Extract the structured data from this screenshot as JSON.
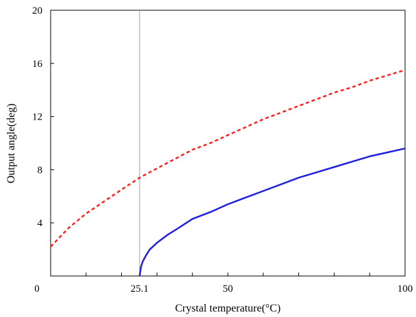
{
  "chart_data": {
    "type": "line",
    "title": "",
    "xlabel": "Crystal temperature(°C)",
    "ylabel": "Output angle(deg)",
    "xlim": [
      0,
      100
    ],
    "ylim": [
      0,
      20
    ],
    "x_tick_labels": [
      {
        "value": 0,
        "label": "0"
      },
      {
        "value": 25.1,
        "label": "25.1"
      },
      {
        "value": 50,
        "label": "50"
      },
      {
        "value": 100,
        "label": "100"
      }
    ],
    "x_minor_ticks": [
      10,
      20,
      30,
      40,
      60,
      70,
      80,
      90
    ],
    "y_tick_labels": [
      {
        "value": 4,
        "label": "4"
      },
      {
        "value": 8,
        "label": "8"
      },
      {
        "value": 12,
        "label": "12"
      },
      {
        "value": 16,
        "label": "16"
      },
      {
        "value": 20,
        "label": "20"
      }
    ],
    "reference_line": {
      "x": 25.1,
      "color": "#a0a0a0"
    },
    "grid": false,
    "legend": "none",
    "series": [
      {
        "style": "dashed",
        "color": "#ff2020",
        "x": [
          0,
          5,
          10,
          15,
          20,
          25.1,
          30,
          35,
          40,
          45,
          50,
          55,
          60,
          65,
          70,
          75,
          80,
          85,
          90,
          95,
          100
        ],
        "y": [
          2.2,
          3.6,
          4.7,
          5.6,
          6.5,
          7.4,
          8.1,
          8.8,
          9.5,
          10.0,
          10.6,
          11.2,
          11.8,
          12.3,
          12.8,
          13.3,
          13.8,
          14.2,
          14.7,
          15.1,
          15.5
        ]
      },
      {
        "style": "solid",
        "color": "#2020e0",
        "x": [
          25.1,
          25.5,
          26,
          27,
          28,
          30,
          33,
          36,
          40,
          45,
          50,
          55,
          60,
          65,
          70,
          75,
          80,
          85,
          90,
          95,
          100
        ],
        "y": [
          0,
          0.7,
          1.1,
          1.6,
          2.0,
          2.5,
          3.1,
          3.6,
          4.3,
          4.8,
          5.4,
          5.9,
          6.4,
          6.9,
          7.4,
          7.8,
          8.2,
          8.6,
          9.0,
          9.3,
          9.6
        ]
      }
    ]
  }
}
